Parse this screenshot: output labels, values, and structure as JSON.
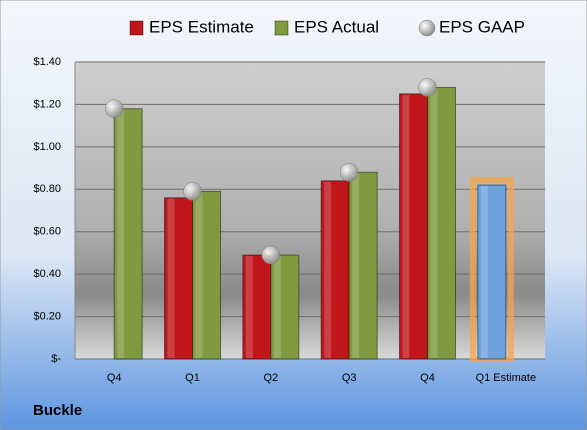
{
  "chart_data": {
    "type": "bar",
    "company": "Buckle",
    "categories": [
      "Q4",
      "Q1",
      "Q2",
      "Q3",
      "Q4",
      "Q1 Estimate"
    ],
    "series": [
      {
        "name": "EPS Estimate",
        "color": "#c0161b",
        "colors": [
          "#c0161b",
          "#c0161b",
          "#c0161b",
          "#c0161b",
          "#c0161b",
          "#6fa2dc"
        ],
        "values": [
          null,
          0.76,
          0.49,
          0.84,
          1.25,
          0.82
        ]
      },
      {
        "name": "EPS Actual",
        "color": "#7f9a3f",
        "values": [
          1.18,
          0.79,
          0.49,
          0.88,
          1.28,
          null
        ]
      },
      {
        "name": "EPS GAAP",
        "color": "#b4b4b4",
        "marker": "circle",
        "values": [
          1.18,
          0.79,
          0.49,
          0.88,
          1.28,
          null
        ]
      }
    ],
    "ylim": [
      0,
      1.4
    ],
    "yticks": [
      {
        "value": 0,
        "label": "$-"
      },
      {
        "value": 0.2,
        "label": "$0.20"
      },
      {
        "value": 0.4,
        "label": "$0.40"
      },
      {
        "value": 0.6,
        "label": "$0.60"
      },
      {
        "value": 0.8,
        "label": "$0.80"
      },
      {
        "value": 1.0,
        "label": "$1.00"
      },
      {
        "value": 1.2,
        "label": "$1.20"
      },
      {
        "value": 1.4,
        "label": "$1.40"
      }
    ],
    "grid": true,
    "legend": "top"
  }
}
